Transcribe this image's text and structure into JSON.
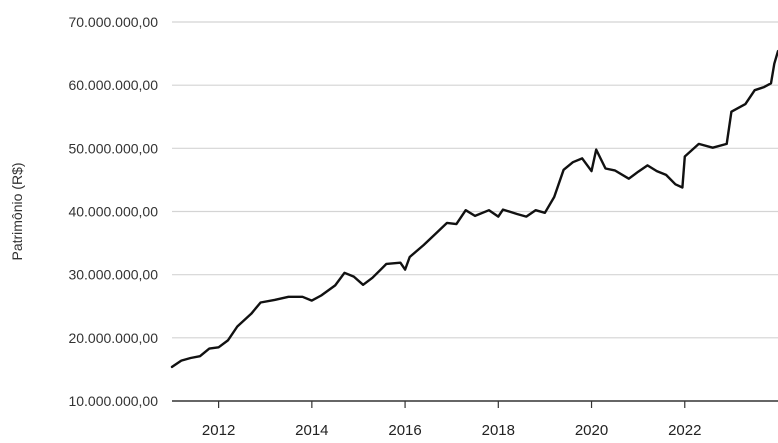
{
  "chart_data": {
    "type": "line",
    "title": "",
    "xlabel": "",
    "ylabel": "Patrimônio (R$)",
    "xlim": [
      2011.0,
      2024.0
    ],
    "ylim": [
      10000000,
      70000000
    ],
    "grid": "horizontal",
    "line_color": "#111111",
    "y_ticks": [
      {
        "value": 10000000,
        "label": "10.000.000,00"
      },
      {
        "value": 20000000,
        "label": "20.000.000,00"
      },
      {
        "value": 30000000,
        "label": "30.000.000,00"
      },
      {
        "value": 40000000,
        "label": "40.000.000,00"
      },
      {
        "value": 50000000,
        "label": "50.000.000,00"
      },
      {
        "value": 60000000,
        "label": "60.000.000,00"
      },
      {
        "value": 70000000,
        "label": "70.000.000,00"
      }
    ],
    "x_ticks": [
      {
        "value": 2012,
        "label": "2012"
      },
      {
        "value": 2014,
        "label": "2014"
      },
      {
        "value": 2016,
        "label": "2016"
      },
      {
        "value": 2018,
        "label": "2018"
      },
      {
        "value": 2020,
        "label": "2020"
      },
      {
        "value": 2022,
        "label": "2022"
      }
    ],
    "series": [
      {
        "points": [
          [
            2011.0,
            15400000
          ],
          [
            2011.2,
            16400000
          ],
          [
            2011.4,
            16800000
          ],
          [
            2011.6,
            17100000
          ],
          [
            2011.8,
            18300000
          ],
          [
            2012.0,
            18500000
          ],
          [
            2012.2,
            19600000
          ],
          [
            2012.4,
            21800000
          ],
          [
            2012.7,
            23800000
          ],
          [
            2012.9,
            25600000
          ],
          [
            2013.2,
            26000000
          ],
          [
            2013.5,
            26500000
          ],
          [
            2013.8,
            26500000
          ],
          [
            2014.0,
            25900000
          ],
          [
            2014.2,
            26700000
          ],
          [
            2014.5,
            28300000
          ],
          [
            2014.7,
            30300000
          ],
          [
            2014.9,
            29700000
          ],
          [
            2015.1,
            28400000
          ],
          [
            2015.3,
            29500000
          ],
          [
            2015.6,
            31700000
          ],
          [
            2015.9,
            31900000
          ],
          [
            2016.0,
            30800000
          ],
          [
            2016.1,
            32800000
          ],
          [
            2016.4,
            34700000
          ],
          [
            2016.7,
            36800000
          ],
          [
            2016.9,
            38200000
          ],
          [
            2017.1,
            38000000
          ],
          [
            2017.3,
            40200000
          ],
          [
            2017.5,
            39300000
          ],
          [
            2017.8,
            40200000
          ],
          [
            2018.0,
            39200000
          ],
          [
            2018.1,
            40300000
          ],
          [
            2018.4,
            39600000
          ],
          [
            2018.6,
            39200000
          ],
          [
            2018.8,
            40200000
          ],
          [
            2019.0,
            39800000
          ],
          [
            2019.2,
            42300000
          ],
          [
            2019.4,
            46600000
          ],
          [
            2019.6,
            47800000
          ],
          [
            2019.8,
            48400000
          ],
          [
            2020.0,
            46400000
          ],
          [
            2020.1,
            49800000
          ],
          [
            2020.3,
            46800000
          ],
          [
            2020.5,
            46500000
          ],
          [
            2020.8,
            45200000
          ],
          [
            2021.0,
            46300000
          ],
          [
            2021.2,
            47300000
          ],
          [
            2021.4,
            46400000
          ],
          [
            2021.6,
            45800000
          ],
          [
            2021.8,
            44300000
          ],
          [
            2021.95,
            43800000
          ],
          [
            2022.0,
            48700000
          ],
          [
            2022.3,
            50700000
          ],
          [
            2022.6,
            50100000
          ],
          [
            2022.9,
            50700000
          ],
          [
            2023.0,
            55800000
          ],
          [
            2023.3,
            57000000
          ],
          [
            2023.5,
            59200000
          ],
          [
            2023.7,
            59700000
          ],
          [
            2023.85,
            60300000
          ],
          [
            2023.92,
            63400000
          ],
          [
            2024.0,
            65400000
          ]
        ]
      }
    ]
  }
}
